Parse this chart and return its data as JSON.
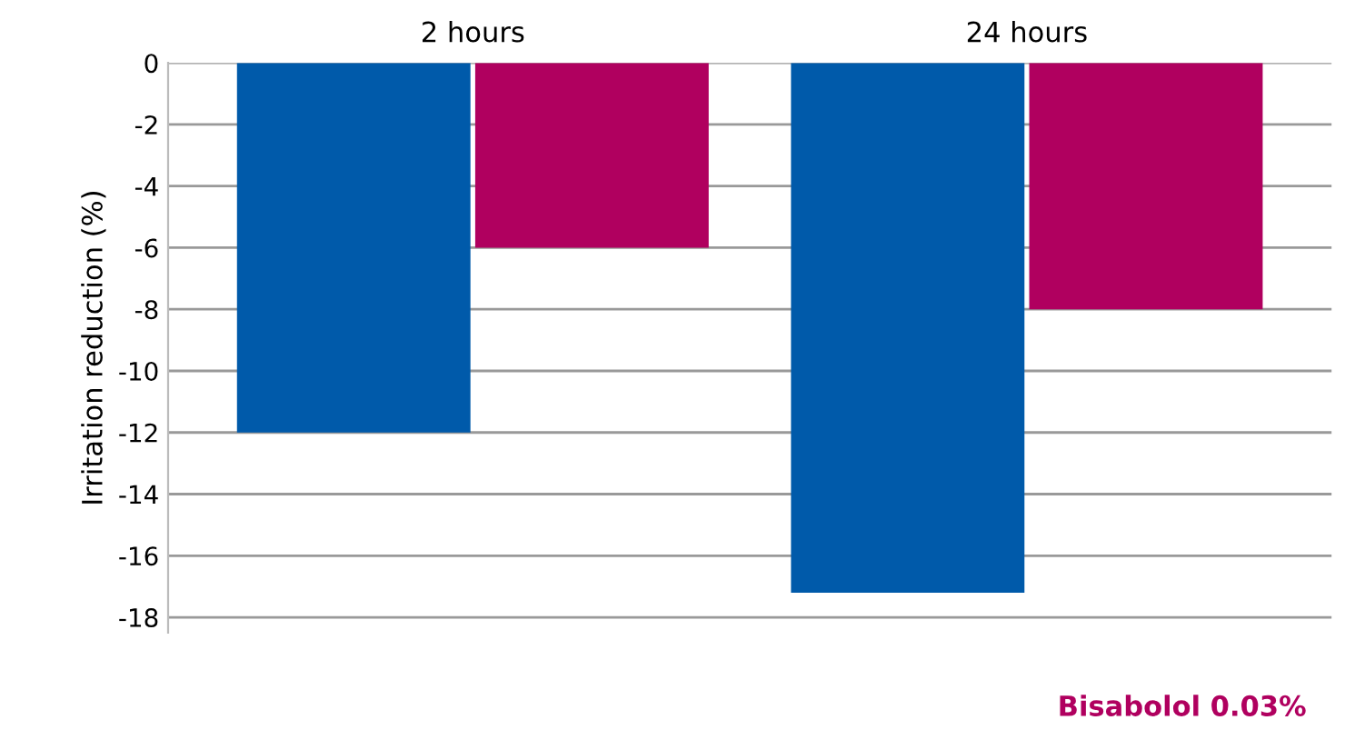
{
  "chart_data": {
    "type": "bar",
    "ylabel": "Irritation reduction (%)",
    "categories": [
      "2 hours",
      "24 hours"
    ],
    "series": [
      {
        "color": "#005aaa",
        "values": [
          -12,
          -17.2
        ]
      },
      {
        "name": "Bisabolol 0.03%",
        "color": "#b0005f",
        "values": [
          -6,
          -8
        ]
      }
    ],
    "ylim": [
      -18.5,
      0
    ],
    "yticks": [
      0,
      -2,
      -4,
      -6,
      -8,
      -10,
      -12,
      -14,
      -16,
      -18
    ],
    "grid": "y",
    "legend": "bottom right"
  }
}
